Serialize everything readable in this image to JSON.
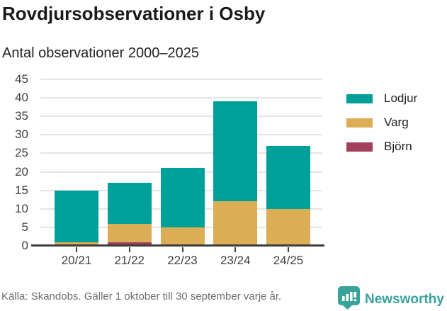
{
  "header": {
    "title": "Rovdjursobservationer i Osby",
    "subtitle": "Antal observationer 2000–2025"
  },
  "chart_data": {
    "type": "bar",
    "stacked": true,
    "title": "Rovdjursobservationer i Osby",
    "subtitle": "Antal observationer 2000–2025",
    "categories": [
      "20/21",
      "21/22",
      "22/23",
      "23/24",
      "24/25"
    ],
    "series": [
      {
        "name": "Lodjur",
        "color": "#00a09a",
        "values": [
          14,
          11,
          16,
          27,
          17
        ]
      },
      {
        "name": "Varg",
        "color": "#dbad55",
        "values": [
          1,
          5,
          5,
          12,
          10
        ]
      },
      {
        "name": "Björn",
        "color": "#a33e5c",
        "values": [
          0,
          1,
          0,
          0,
          0
        ]
      }
    ],
    "stack_order_bottom_to_top": [
      "Björn",
      "Varg",
      "Lodjur"
    ],
    "totals": [
      15,
      17,
      21,
      39,
      27
    ],
    "xlabel": "",
    "ylabel": "",
    "ylim": [
      0,
      45
    ],
    "yticks": [
      0,
      5,
      10,
      15,
      20,
      25,
      30,
      35,
      40,
      45
    ],
    "grid": true,
    "legend_position": "right",
    "colors": {
      "gridline": "#e4e4e4",
      "axis": "#3d3d3d",
      "text": "#3f3f3f"
    }
  },
  "footer": {
    "source": "Källa: Skandobs. Gäller 1 oktober till 30 september varje år.",
    "brand": "Newsworthy",
    "brand_color": "#39a29a"
  }
}
